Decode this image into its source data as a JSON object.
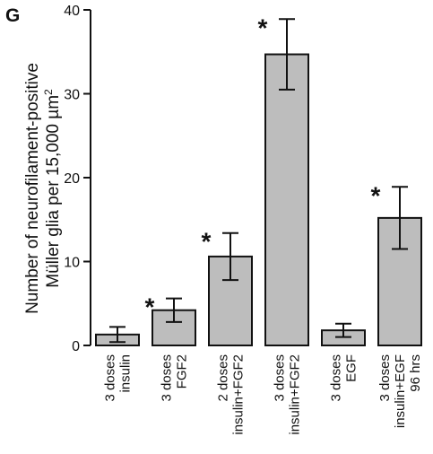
{
  "chart_data": {
    "type": "bar",
    "panel_label": "G",
    "ylabel_lines": [
      "Number of neurofilament-positive",
      "Müller glia per 15,000 µm"
    ],
    "ylabel_superscript": "2",
    "ylim": [
      0,
      40
    ],
    "y_ticks": [
      0,
      10,
      20,
      30,
      40
    ],
    "grid": false,
    "bar_color": "#bdbdbd",
    "categories": [
      [
        "3 doses",
        "insulin"
      ],
      [
        "3 doses",
        "FGF2"
      ],
      [
        "2 doses",
        "insulin+FGF2"
      ],
      [
        "3 doses",
        "insulin+FGF2"
      ],
      [
        "3 doses",
        "EGF"
      ],
      [
        "3 doses",
        "insulin+EGF",
        "96 hrs"
      ]
    ],
    "values": [
      1.3,
      4.2,
      10.6,
      34.7,
      1.8,
      15.2
    ],
    "errors": [
      0.9,
      1.4,
      2.8,
      4.2,
      0.8,
      3.7
    ],
    "significance_marker": "*",
    "significant": [
      false,
      true,
      true,
      true,
      false,
      true
    ]
  }
}
